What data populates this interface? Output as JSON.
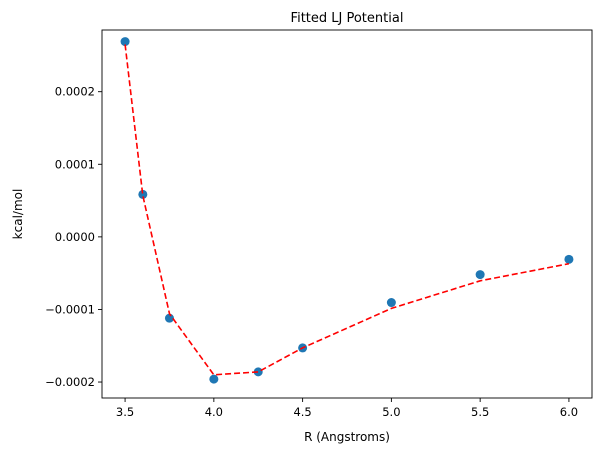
{
  "chart_data": {
    "type": "scatter",
    "title": "Fitted LJ Potential",
    "xlabel": "R (Angstroms)",
    "ylabel": "kcal/mol",
    "xlim": [
      3.37,
      6.13
    ],
    "ylim": [
      -0.000222,
      0.000285
    ],
    "grid": false,
    "x_ticks": [
      3.5,
      4.0,
      4.5,
      5.0,
      5.5,
      6.0
    ],
    "x_tick_labels": [
      "3.5",
      "4.0",
      "4.5",
      "5.0",
      "5.5",
      "6.0"
    ],
    "y_ticks": [
      0.0002,
      0.0001,
      0.0,
      -0.0001,
      -0.0002
    ],
    "y_tick_labels": [
      "0.0002",
      "0.0001",
      "0.0000",
      "−0.0001",
      "−0.0002"
    ],
    "series": [
      {
        "style": "markers",
        "color": "#1f77b4",
        "x": [
          3.5,
          3.6,
          3.75,
          4.0,
          4.25,
          4.5,
          5.0,
          5.5,
          6.0
        ],
        "y": [
          0.000269,
          5.85e-05,
          -0.000112,
          -0.000196,
          -0.000186,
          -0.000153,
          -9.05e-05,
          -5.2e-05,
          -3.1e-05
        ]
      },
      {
        "style": "dashed-line",
        "color": "#ff0000",
        "x": [
          3.5,
          3.6,
          3.75,
          4.0,
          4.25,
          4.5,
          5.0,
          5.5,
          6.0
        ],
        "y": [
          0.000265,
          5.7e-05,
          -0.000106,
          -0.00019,
          -0.000186,
          -0.000153,
          -9.85e-05,
          -6.05e-05,
          -3.7e-05
        ]
      }
    ]
  }
}
